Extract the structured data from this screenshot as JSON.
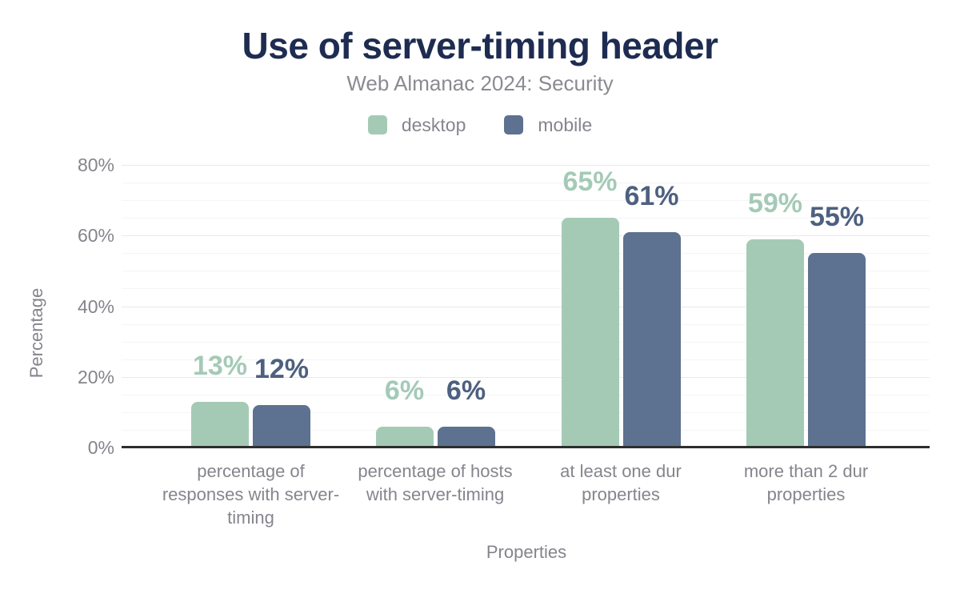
{
  "page": {
    "background": "#ffffff"
  },
  "header": {
    "title": "Use of server-timing header",
    "subtitle": "Web Almanac 2024: Security"
  },
  "legend": {
    "items": [
      {
        "label": "desktop",
        "color": "#a4cab6"
      },
      {
        "label": "mobile",
        "color": "#5d7190"
      }
    ]
  },
  "axes": {
    "y_title": "Percentage",
    "x_title": "Properties"
  },
  "colors": {
    "title_text": "#1e2c51",
    "subtitle_text": "#8a8a92",
    "axis_text": "#84848c",
    "axis_line": "#2e2e2e",
    "grid_major": "#e9e9e9",
    "grid_minor": "#f5f5f5",
    "desktop": "#a4cab6",
    "mobile": "#5d7190",
    "mobile_value_label": "#4d6080"
  },
  "chart_data": {
    "type": "bar",
    "title": "Use of server-timing header",
    "subtitle": "Web Almanac 2024: Security",
    "xlabel": "Properties",
    "ylabel": "Percentage",
    "ylim": [
      0,
      80
    ],
    "ytick_values": [
      0,
      20,
      40,
      60,
      80
    ],
    "ytick_labels": [
      "0%",
      "20%",
      "40%",
      "60%",
      "80%"
    ],
    "grid": {
      "orientation": "horizontal",
      "minor_step": 5,
      "major_step": 20
    },
    "legend_position": "top",
    "categories": [
      "percentage of responses with server-timing",
      "percentage of hosts with server-timing",
      "at least one dur properties",
      "more than 2 dur properties"
    ],
    "series": [
      {
        "name": "desktop",
        "color": "#a4cab6",
        "label_color": "#a4cab6",
        "values": [
          13,
          6,
          65,
          59
        ],
        "labels": [
          "13%",
          "6%",
          "65%",
          "59%"
        ]
      },
      {
        "name": "mobile",
        "color": "#5d7190",
        "label_color": "#4d6080",
        "values": [
          12,
          6,
          61,
          55
        ],
        "labels": [
          "12%",
          "6%",
          "61%",
          "55%"
        ]
      }
    ]
  }
}
